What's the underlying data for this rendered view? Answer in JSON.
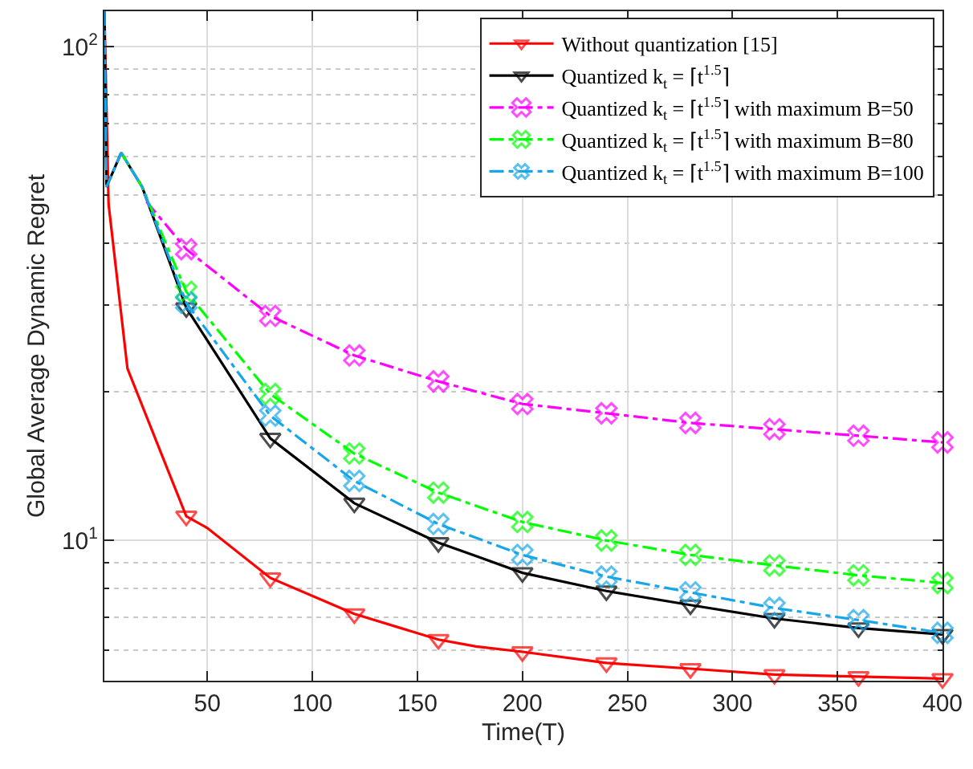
{
  "chart_data": {
    "type": "line",
    "xlabel": "Time(T)",
    "ylabel": "Global Average Dynamic Regret",
    "log": "y",
    "grid": true,
    "legend": "top right",
    "xlim": [
      1,
      400
    ],
    "xticks": [
      50,
      100,
      150,
      200,
      250,
      300,
      350,
      400
    ],
    "ylim": [
      5.2,
      118
    ],
    "yticks": [
      {
        "value": 6,
        "label": null
      },
      {
        "value": 7,
        "label": null
      },
      {
        "value": 8,
        "label": null
      },
      {
        "value": 9,
        "label": null
      },
      {
        "value": 10,
        "label": "10$^{1}$"
      },
      {
        "value": 20,
        "label": null
      },
      {
        "value": 30,
        "label": null
      },
      {
        "value": 40,
        "label": null
      },
      {
        "value": 50,
        "label": null
      },
      {
        "value": 60,
        "label": null
      },
      {
        "value": 70,
        "label": null
      },
      {
        "value": 80,
        "label": null
      },
      {
        "value": 90,
        "label": null
      },
      {
        "value": 100,
        "label": "10$^{2}$"
      }
    ],
    "series": [
      {
        "name": "Without quantization [15]",
        "color": "#ff0000",
        "marker": "triangle",
        "line_style": "solid",
        "x": [
          1,
          3,
          12,
          27,
          40,
          50,
          80,
          120,
          160,
          178,
          200,
          240,
          280,
          320,
          360,
          400
        ],
        "values": [
          118,
          48,
          22.3,
          15.4,
          11.2,
          10.6,
          8.4,
          7.1,
          6.3,
          6.1,
          5.95,
          5.65,
          5.5,
          5.35,
          5.3,
          5.25
        ]
      },
      {
        "name": "Quantized k$_{t}$ = ⌈t$^{1.5}$⌉",
        "color": "#000000",
        "marker": "triangle",
        "line_style": "solid",
        "x": [
          1,
          2,
          9,
          19,
          40,
          80,
          120,
          160,
          178,
          200,
          240,
          280,
          320,
          360,
          400
        ],
        "values": [
          118,
          52,
          61,
          52,
          29.6,
          16.1,
          11.9,
          9.9,
          9.3,
          8.6,
          7.9,
          7.4,
          6.95,
          6.65,
          6.45
        ]
      },
      {
        "name": "Quantized k$_{t}$ = ⌈t$^{1.5}$⌉ with maximum B=50",
        "color": "#ff00ff",
        "marker": "cross",
        "line_style": "dashed",
        "x": [
          21,
          40,
          80,
          120,
          160,
          200,
          240,
          280,
          320,
          360,
          400
        ],
        "values": [
          48.6,
          38.9,
          28.5,
          23.7,
          21,
          18.9,
          18.1,
          17.3,
          16.8,
          16.3,
          15.8
        ]
      },
      {
        "name": "Quantized k$_{t}$ = ⌈t$^{1.5}$⌉ with maximum B=80",
        "color": "#00ff00",
        "marker": "cross",
        "line_style": "dashed",
        "x": [
          9,
          19,
          40,
          80,
          120,
          160,
          200,
          240,
          280,
          320,
          360,
          400
        ],
        "values": [
          61,
          52,
          31.9,
          19.8,
          15,
          12.5,
          10.9,
          10,
          9.35,
          8.9,
          8.5,
          8.2
        ]
      },
      {
        "name": "Quantized k$_{t}$ = ⌈t$^{1.5}$⌉ with maximum B=100",
        "color": "#18a6ea",
        "marker": "cross",
        "line_style": "dashed",
        "x": [
          1,
          2,
          9,
          19,
          40,
          80,
          120,
          160,
          200,
          240,
          280,
          320,
          360,
          400
        ],
        "values": [
          118,
          52,
          61,
          52,
          30.3,
          17.9,
          13.2,
          10.8,
          9.35,
          8.45,
          7.85,
          7.3,
          6.9,
          6.5
        ]
      }
    ]
  }
}
